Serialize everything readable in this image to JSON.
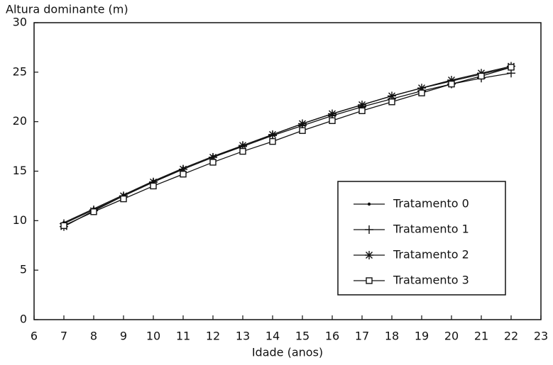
{
  "chart_data": {
    "type": "line",
    "title": "Altura dominante (m)",
    "xlabel": "Idade (anos)",
    "x": [
      7,
      8,
      9,
      10,
      11,
      12,
      13,
      14,
      15,
      16,
      17,
      18,
      19,
      20,
      21,
      22
    ],
    "series": [
      {
        "name": "Tratamento 0",
        "color": "#111111",
        "marker": "dot",
        "values": [
          9.8,
          11.2,
          12.6,
          14.0,
          15.3,
          16.5,
          17.6,
          18.7,
          19.8,
          20.8,
          21.7,
          22.6,
          23.4,
          24.1,
          24.8,
          25.5
        ]
      },
      {
        "name": "Tratamento 1",
        "color": "#111111",
        "marker": "plus",
        "values": [
          9.7,
          11.1,
          12.5,
          13.9,
          15.2,
          16.4,
          17.5,
          18.6,
          19.6,
          20.6,
          21.5,
          22.3,
          23.1,
          23.8,
          24.4,
          24.9
        ]
      },
      {
        "name": "Tratamento 2",
        "color": "#111111",
        "marker": "star",
        "values": [
          9.4,
          11.0,
          12.5,
          13.9,
          15.2,
          16.4,
          17.6,
          18.7,
          19.8,
          20.8,
          21.7,
          22.6,
          23.4,
          24.2,
          24.9,
          25.6
        ]
      },
      {
        "name": "Tratamento 3",
        "color": "#111111",
        "marker": "square",
        "values": [
          9.5,
          10.9,
          12.2,
          13.5,
          14.7,
          15.9,
          17.0,
          18.0,
          19.1,
          20.1,
          21.1,
          22.0,
          22.9,
          23.8,
          24.6,
          25.5
        ]
      }
    ],
    "xlim": [
      6,
      23
    ],
    "xticks": [
      6,
      7,
      8,
      9,
      10,
      11,
      12,
      13,
      14,
      15,
      16,
      17,
      18,
      19,
      20,
      21,
      22,
      23
    ],
    "ylim": [
      0,
      30
    ],
    "yticks": [
      0,
      5,
      10,
      15,
      20,
      25,
      30
    ],
    "legend": "lower right"
  }
}
